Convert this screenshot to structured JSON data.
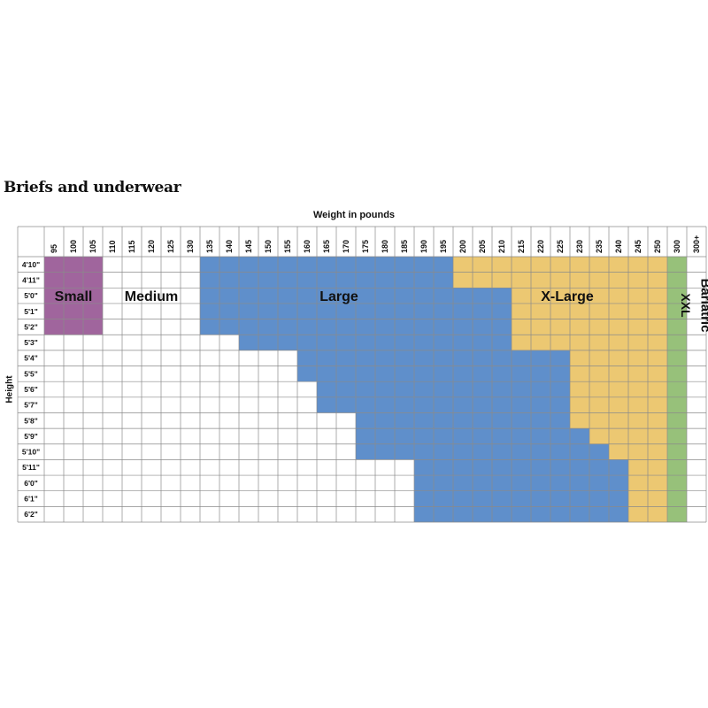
{
  "chart_data": {
    "type": "heatmap",
    "title": "Briefs and underwear",
    "xlabel": "Weight in pounds",
    "ylabel": "Height",
    "weights": [
      "95",
      "100",
      "105",
      "110",
      "115",
      "120",
      "125",
      "130",
      "135",
      "140",
      "145",
      "150",
      "155",
      "160",
      "165",
      "170",
      "175",
      "180",
      "185",
      "190",
      "195",
      "200",
      "205",
      "210",
      "215",
      "220",
      "225",
      "230",
      "235",
      "240",
      "245",
      "250",
      "300",
      "300+"
    ],
    "heights": [
      "4'10\"",
      "4'11\"",
      "5'0\"",
      "5'1\"",
      "5'2\"",
      "5'3\"",
      "5'4\"",
      "5'5\"",
      "5'6\"",
      "5'7\"",
      "5'8\"",
      "5'9\"",
      "5'10\"",
      "5'11\"",
      "6'0\"",
      "6'1\"",
      "6'2\""
    ],
    "sizes": [
      {
        "name": "Small",
        "color": "#a0659d"
      },
      {
        "name": "Medium",
        "color": "#ffffff"
      },
      {
        "name": "Large",
        "color": "#5f8fcb"
      },
      {
        "name": "X-Large",
        "color": "#ecc872"
      },
      {
        "name": "XXL",
        "color": "#97c17a"
      },
      {
        "name": "Bariatric",
        "color": "#ffffff"
      }
    ],
    "size_ranges": {
      "Small": [
        {
          "heights": [
            "4'10\"",
            "5'2\""
          ],
          "weights": [
            "95",
            "105"
          ]
        }
      ],
      "Large_start_weight_by_height": [
        "135",
        "135",
        "135",
        "135",
        "135",
        "145",
        "160",
        "160",
        "165",
        "165",
        "175",
        "175",
        "175",
        "190",
        "190",
        "190",
        "190"
      ],
      "XLarge_start_weight_by_height": [
        "200",
        "200",
        "215",
        "215",
        "215",
        "215",
        "230",
        "230",
        "230",
        "230",
        "230",
        "235",
        "240",
        "245",
        "245",
        "245",
        "245"
      ],
      "XXL": [
        {
          "heights": [
            "4'10\"",
            "6'2\""
          ],
          "weights": [
            "300",
            "300"
          ]
        }
      ],
      "Bariatric": [
        {
          "heights": [
            "4'10\"",
            "6'2\""
          ],
          "weights": [
            "300+",
            "300+"
          ]
        }
      ]
    }
  }
}
